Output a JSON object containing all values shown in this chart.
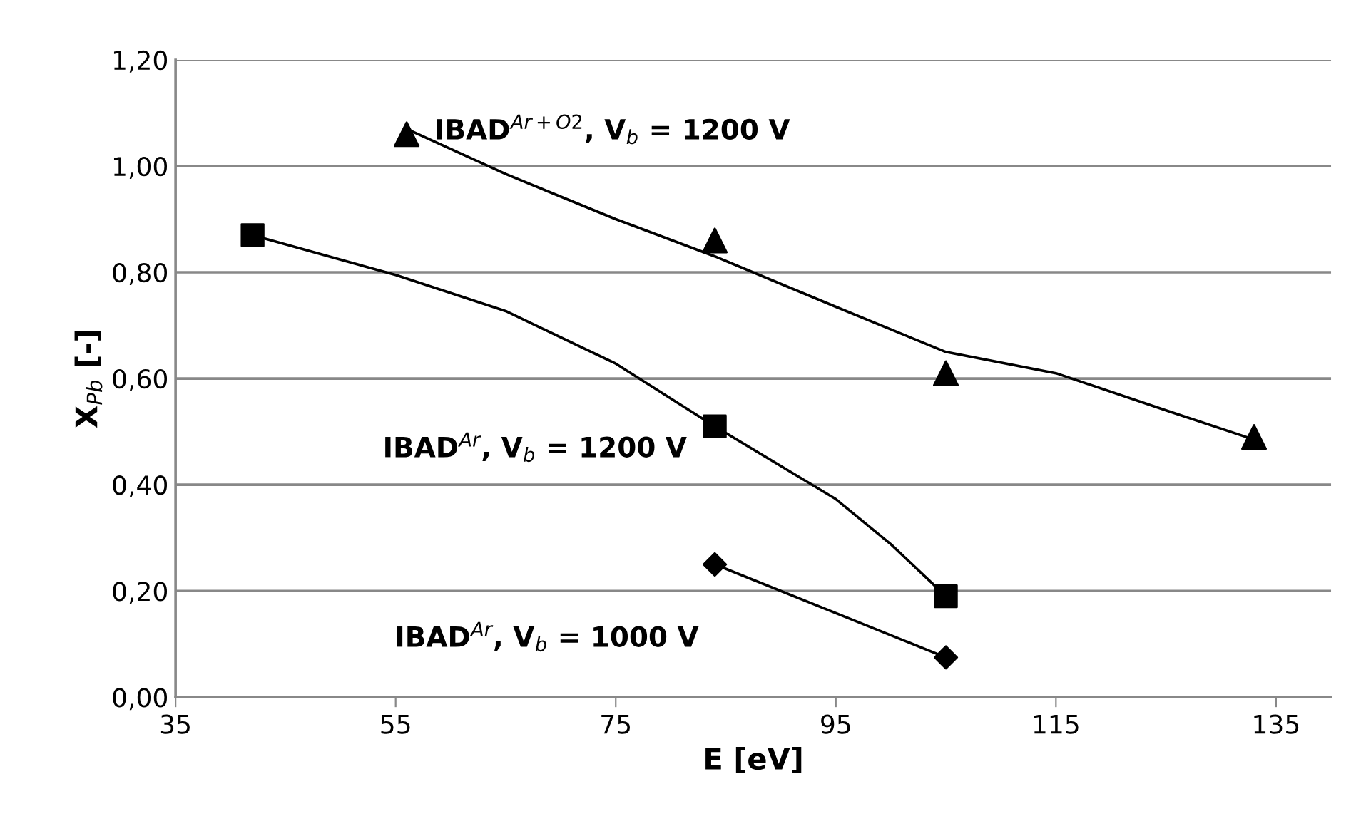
{
  "chart_data": {
    "type": "scatter",
    "xlabel": "E [eV]",
    "ylabel": "X$_{Pb}$ [-]",
    "xlim": [
      35,
      140
    ],
    "xticks": [
      35,
      55,
      75,
      95,
      115,
      135
    ],
    "ylim": [
      0,
      1.2
    ],
    "yticks": [
      {
        "value": 0,
        "label": "0,00"
      },
      {
        "value": 0.2,
        "label": "0,20"
      },
      {
        "value": 0.4,
        "label": "0,40"
      },
      {
        "value": 0.6,
        "label": "0,60"
      },
      {
        "value": 0.8,
        "label": "0,80"
      },
      {
        "value": 1.0,
        "label": "1,00"
      },
      {
        "value": 1.2,
        "label": "1,20"
      }
    ],
    "grid": "y",
    "legend": false,
    "series": [
      {
        "name": "IBAD$^{Ar+O2}$, V$_{b}$ = 1200 V",
        "color": "#000000",
        "marker": "triangle",
        "x": [
          56,
          84,
          105,
          133
        ],
        "values": [
          1.06,
          0.86,
          0.61,
          0.49
        ]
      },
      {
        "name": "IBAD$^{Ar}$, V$_{b}$ = 1200 V",
        "color": "#000000",
        "marker": "square",
        "x": [
          42,
          84,
          105
        ],
        "values": [
          0.87,
          0.51,
          0.19
        ]
      },
      {
        "name": "IBAD$^{Ar}$, V$_{b}$ = 1000 V",
        "color": "#000000",
        "marker": "diamond",
        "x": [
          84,
          105
        ],
        "values": [
          0.25,
          0.075
        ]
      },
      {
        "type": "line",
        "color": "#000000",
        "line_style": "solid",
        "marker": "none",
        "x": [
          56,
          65,
          75,
          84,
          95,
          105,
          115,
          125,
          133
        ],
        "values": [
          1.07,
          0.985,
          0.9,
          0.83,
          0.735,
          0.65,
          0.61,
          0.54,
          0.485
        ]
      },
      {
        "type": "line",
        "color": "#000000",
        "line_style": "solid",
        "marker": "none",
        "x": [
          42,
          55,
          65,
          75,
          84,
          95,
          100,
          105
        ],
        "values": [
          0.87,
          0.795,
          0.727,
          0.628,
          0.51,
          0.373,
          0.288,
          0.19
        ]
      },
      {
        "type": "line",
        "color": "#000000",
        "line_style": "solid",
        "marker": "none",
        "x": [
          84,
          105
        ],
        "values": [
          0.25,
          0.075
        ]
      }
    ]
  }
}
